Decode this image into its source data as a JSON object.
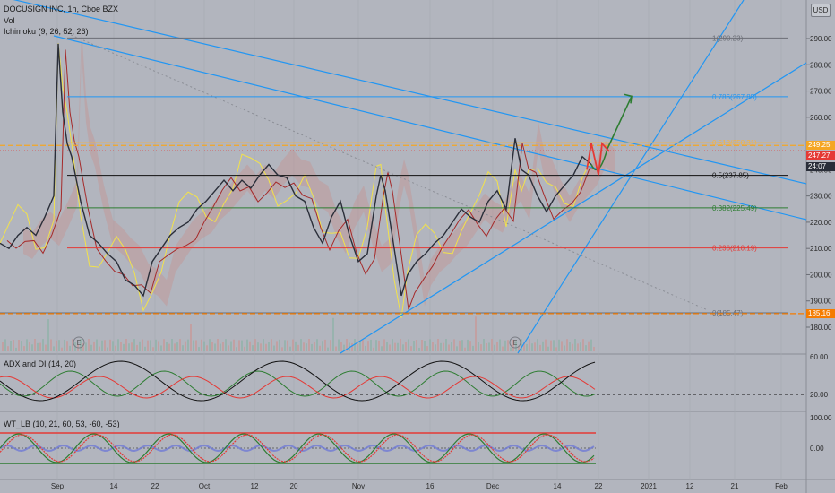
{
  "header": {
    "symbol_line": "DOCUSIGN INC, 1h, Cboe BZX",
    "volume_label": "Vol",
    "ichimoku_label": "Ichimoku (9, 26, 52, 26)",
    "currency": "USD"
  },
  "price_tags": {
    "tag1": {
      "value": "249.25",
      "color": "#f5a623"
    },
    "tag2": {
      "value": "247.27",
      "color": "#e53935"
    },
    "tag3": {
      "value": "24:07",
      "color": "#2a2e39"
    },
    "tag4": {
      "value": "185.16",
      "color": "#f57c00"
    }
  },
  "panes": {
    "adx_label": "ADX and DI (14, 20)",
    "wt_label": "WT_LB (10, 21, 60, 53, -60, -53)"
  },
  "markers": {
    "earnings": "E"
  },
  "chart_data": {
    "type": "line",
    "title": "DOCUSIGN INC, 1h, Cboe BZX",
    "ylim": [
      170,
      300
    ],
    "y_ticks": [
      "290.00",
      "280.00",
      "270.00",
      "260.00",
      "250.00",
      "240.00",
      "230.00",
      "220.00",
      "210.00",
      "200.00",
      "190.00",
      "180.00"
    ],
    "y_tick_values": [
      290,
      280,
      270,
      260,
      250,
      240,
      230,
      220,
      210,
      200,
      190,
      180
    ],
    "x_ticks": [
      "Sep",
      "14",
      "22",
      "Oct",
      "12",
      "20",
      "Nov",
      "16",
      "Dec",
      "14",
      "22",
      "2021",
      "12",
      "21",
      "Feb"
    ],
    "fib_levels": [
      {
        "ratio": "1",
        "price": 290.23,
        "label": "1(290.23)",
        "color": "#6b6e76"
      },
      {
        "ratio": "0.786",
        "price": 267.85,
        "label": "0.786(267.85)",
        "color": "#2196f3"
      },
      {
        "ratio": "0.618",
        "price": 250.31,
        "label": "0.618(250.31)",
        "color": "#f5b342"
      },
      {
        "ratio": "0.5",
        "price": 237.85,
        "label": "0.5(237.85)",
        "color": "#111111"
      },
      {
        "ratio": "0.382",
        "price": 225.49,
        "label": "0.382(225.49)",
        "color": "#2e7d32"
      },
      {
        "ratio": "0.236",
        "price": 210.19,
        "label": "0.236(210.19)",
        "color": "#e53935"
      },
      {
        "ratio": "0",
        "price": 185.47,
        "label": "0(185.47)",
        "color": "#6b6e76"
      }
    ],
    "close_series": [
      {
        "x": 0,
        "y": 212
      },
      {
        "x": 10,
        "y": 210
      },
      {
        "x": 20,
        "y": 215
      },
      {
        "x": 30,
        "y": 218
      },
      {
        "x": 40,
        "y": 215
      },
      {
        "x": 50,
        "y": 222
      },
      {
        "x": 60,
        "y": 230
      },
      {
        "x": 65,
        "y": 288
      },
      {
        "x": 70,
        "y": 262
      },
      {
        "x": 75,
        "y": 250
      },
      {
        "x": 80,
        "y": 245
      },
      {
        "x": 90,
        "y": 228
      },
      {
        "x": 100,
        "y": 215
      },
      {
        "x": 110,
        "y": 212
      },
      {
        "x": 120,
        "y": 208
      },
      {
        "x": 130,
        "y": 205
      },
      {
        "x": 140,
        "y": 198
      },
      {
        "x": 150,
        "y": 196
      },
      {
        "x": 160,
        "y": 192
      },
      {
        "x": 170,
        "y": 205
      },
      {
        "x": 180,
        "y": 210
      },
      {
        "x": 190,
        "y": 215
      },
      {
        "x": 200,
        "y": 218
      },
      {
        "x": 210,
        "y": 220
      },
      {
        "x": 220,
        "y": 225
      },
      {
        "x": 230,
        "y": 228
      },
      {
        "x": 240,
        "y": 232
      },
      {
        "x": 250,
        "y": 236
      },
      {
        "x": 260,
        "y": 232
      },
      {
        "x": 270,
        "y": 236
      },
      {
        "x": 280,
        "y": 233
      },
      {
        "x": 290,
        "y": 238
      },
      {
        "x": 300,
        "y": 242
      },
      {
        "x": 310,
        "y": 238
      },
      {
        "x": 320,
        "y": 237
      },
      {
        "x": 330,
        "y": 230
      },
      {
        "x": 340,
        "y": 228
      },
      {
        "x": 350,
        "y": 218
      },
      {
        "x": 360,
        "y": 212
      },
      {
        "x": 370,
        "y": 222
      },
      {
        "x": 380,
        "y": 228
      },
      {
        "x": 390,
        "y": 215
      },
      {
        "x": 400,
        "y": 205
      },
      {
        "x": 410,
        "y": 208
      },
      {
        "x": 420,
        "y": 230
      },
      {
        "x": 425,
        "y": 238
      },
      {
        "x": 430,
        "y": 232
      },
      {
        "x": 440,
        "y": 210
      },
      {
        "x": 448,
        "y": 192
      },
      {
        "x": 455,
        "y": 200
      },
      {
        "x": 465,
        "y": 205
      },
      {
        "x": 475,
        "y": 208
      },
      {
        "x": 485,
        "y": 212
      },
      {
        "x": 495,
        "y": 215
      },
      {
        "x": 505,
        "y": 220
      },
      {
        "x": 515,
        "y": 225
      },
      {
        "x": 525,
        "y": 222
      },
      {
        "x": 535,
        "y": 220
      },
      {
        "x": 545,
        "y": 228
      },
      {
        "x": 555,
        "y": 232
      },
      {
        "x": 565,
        "y": 225
      },
      {
        "x": 575,
        "y": 252
      },
      {
        "x": 582,
        "y": 240
      },
      {
        "x": 590,
        "y": 238
      },
      {
        "x": 600,
        "y": 230
      },
      {
        "x": 610,
        "y": 224
      },
      {
        "x": 620,
        "y": 230
      },
      {
        "x": 630,
        "y": 234
      },
      {
        "x": 640,
        "y": 238
      },
      {
        "x": 650,
        "y": 245
      },
      {
        "x": 660,
        "y": 242
      }
    ],
    "projection": {
      "from": [
        660,
        242
      ],
      "to": [
        705,
        268
      ],
      "color": "#2e7d32"
    }
  }
}
